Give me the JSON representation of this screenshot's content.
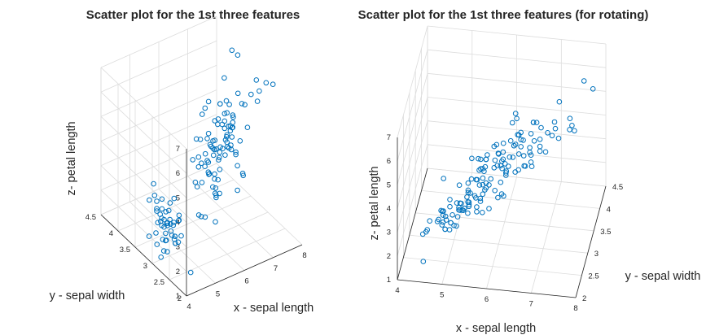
{
  "chart_data": [
    {
      "type": "scatter",
      "title": "Scatter plot for the 1st three features",
      "xlabel": "x - sepal length",
      "ylabel": "y - sepal width",
      "zlabel": "z- petal length",
      "xlim": [
        4,
        8
      ],
      "ylim": [
        2,
        4.5
      ],
      "zlim": [
        1,
        7
      ],
      "xticks": [
        "4",
        "5",
        "6",
        "7",
        "8"
      ],
      "yticks": [
        "2",
        "2.5",
        "3",
        "3.5",
        "4",
        "4.5"
      ],
      "zticks": [
        "1",
        "2",
        "3",
        "4",
        "5",
        "6",
        "7"
      ],
      "grid": true,
      "marker_color": "#0072bd",
      "marker": "circle-open"
    },
    {
      "type": "scatter",
      "title": "Scatter plot for the 1st three features (for rotating)",
      "xlabel": "x - sepal length",
      "ylabel": "y - sepal width",
      "zlabel": "z- petal length",
      "xlim": [
        4,
        8
      ],
      "ylim": [
        2,
        4.5
      ],
      "zlim": [
        1,
        7
      ],
      "xticks": [
        "4",
        "5",
        "6",
        "7",
        "8"
      ],
      "yticks": [
        "2",
        "2.5",
        "3",
        "3.5",
        "4",
        "4.5"
      ],
      "zticks": [
        "1",
        "2",
        "3",
        "4",
        "5",
        "6",
        "7"
      ],
      "grid": true,
      "marker_color": "#0072bd",
      "marker": "circle-open"
    }
  ],
  "points": [
    [
      5.1,
      3.5,
      1.4
    ],
    [
      4.9,
      3.0,
      1.4
    ],
    [
      4.7,
      3.2,
      1.3
    ],
    [
      4.6,
      3.1,
      1.5
    ],
    [
      5.0,
      3.6,
      1.4
    ],
    [
      5.4,
      3.9,
      1.7
    ],
    [
      4.6,
      3.4,
      1.4
    ],
    [
      5.0,
      3.4,
      1.5
    ],
    [
      4.4,
      2.9,
      1.4
    ],
    [
      4.9,
      3.1,
      1.5
    ],
    [
      5.4,
      3.7,
      1.5
    ],
    [
      4.8,
      3.4,
      1.6
    ],
    [
      4.8,
      3.0,
      1.4
    ],
    [
      4.3,
      3.0,
      1.1
    ],
    [
      5.8,
      4.0,
      1.2
    ],
    [
      5.7,
      4.4,
      1.5
    ],
    [
      5.4,
      3.9,
      1.3
    ],
    [
      5.1,
      3.5,
      1.4
    ],
    [
      5.7,
      3.8,
      1.7
    ],
    [
      5.1,
      3.8,
      1.5
    ],
    [
      5.4,
      3.4,
      1.7
    ],
    [
      5.1,
      3.7,
      1.5
    ],
    [
      4.6,
      3.6,
      1.0
    ],
    [
      5.1,
      3.3,
      1.7
    ],
    [
      4.8,
      3.4,
      1.9
    ],
    [
      5.0,
      3.0,
      1.6
    ],
    [
      5.0,
      3.4,
      1.6
    ],
    [
      5.2,
      3.5,
      1.5
    ],
    [
      5.2,
      3.4,
      1.4
    ],
    [
      4.7,
      3.2,
      1.6
    ],
    [
      4.8,
      3.1,
      1.6
    ],
    [
      5.4,
      3.4,
      1.5
    ],
    [
      5.2,
      4.1,
      1.5
    ],
    [
      5.5,
      4.2,
      1.4
    ],
    [
      4.9,
      3.1,
      1.5
    ],
    [
      5.0,
      3.2,
      1.2
    ],
    [
      5.5,
      3.5,
      1.3
    ],
    [
      4.9,
      3.6,
      1.4
    ],
    [
      4.4,
      3.0,
      1.3
    ],
    [
      5.1,
      3.4,
      1.5
    ],
    [
      5.0,
      3.5,
      1.3
    ],
    [
      4.5,
      2.3,
      1.3
    ],
    [
      4.4,
      3.2,
      1.3
    ],
    [
      5.0,
      3.5,
      1.6
    ],
    [
      5.1,
      3.8,
      1.9
    ],
    [
      4.8,
      3.0,
      1.4
    ],
    [
      5.1,
      3.8,
      1.6
    ],
    [
      4.6,
      3.2,
      1.4
    ],
    [
      5.3,
      3.7,
      1.5
    ],
    [
      5.0,
      3.3,
      1.4
    ],
    [
      7.0,
      3.2,
      4.7
    ],
    [
      6.4,
      3.2,
      4.5
    ],
    [
      6.9,
      3.1,
      4.9
    ],
    [
      5.5,
      2.3,
      4.0
    ],
    [
      6.5,
      2.8,
      4.6
    ],
    [
      5.7,
      2.8,
      4.5
    ],
    [
      6.3,
      3.3,
      4.7
    ],
    [
      4.9,
      2.4,
      3.3
    ],
    [
      6.6,
      2.9,
      4.6
    ],
    [
      5.2,
      2.7,
      3.9
    ],
    [
      5.0,
      2.0,
      3.5
    ],
    [
      5.9,
      3.0,
      4.2
    ],
    [
      6.0,
      2.2,
      4.0
    ],
    [
      6.1,
      2.9,
      4.7
    ],
    [
      5.6,
      2.9,
      3.6
    ],
    [
      6.7,
      3.1,
      4.4
    ],
    [
      5.6,
      3.0,
      4.5
    ],
    [
      5.8,
      2.7,
      4.1
    ],
    [
      6.2,
      2.2,
      4.5
    ],
    [
      5.6,
      2.5,
      3.9
    ],
    [
      5.9,
      3.2,
      4.8
    ],
    [
      6.1,
      2.8,
      4.0
    ],
    [
      6.3,
      2.5,
      4.9
    ],
    [
      6.1,
      2.8,
      4.7
    ],
    [
      6.4,
      2.9,
      4.3
    ],
    [
      6.6,
      3.0,
      4.4
    ],
    [
      6.8,
      2.8,
      4.8
    ],
    [
      6.7,
      3.0,
      5.0
    ],
    [
      6.0,
      2.9,
      4.5
    ],
    [
      5.7,
      2.6,
      3.5
    ],
    [
      5.5,
      2.4,
      3.8
    ],
    [
      5.5,
      2.4,
      3.7
    ],
    [
      5.8,
      2.7,
      3.9
    ],
    [
      6.0,
      2.7,
      5.1
    ],
    [
      5.4,
      3.0,
      4.5
    ],
    [
      6.0,
      3.4,
      4.5
    ],
    [
      6.7,
      3.1,
      4.7
    ],
    [
      6.3,
      2.3,
      4.4
    ],
    [
      5.6,
      3.0,
      4.1
    ],
    [
      5.5,
      2.5,
      4.0
    ],
    [
      5.5,
      2.6,
      4.4
    ],
    [
      6.1,
      3.0,
      4.6
    ],
    [
      5.8,
      2.6,
      4.0
    ],
    [
      5.0,
      2.3,
      3.3
    ],
    [
      5.6,
      2.7,
      4.2
    ],
    [
      5.7,
      3.0,
      4.2
    ],
    [
      5.7,
      2.9,
      4.2
    ],
    [
      6.2,
      2.9,
      4.3
    ],
    [
      5.1,
      2.5,
      3.0
    ],
    [
      5.7,
      2.8,
      4.1
    ],
    [
      6.3,
      3.3,
      6.0
    ],
    [
      5.8,
      2.7,
      5.1
    ],
    [
      7.1,
      3.0,
      5.9
    ],
    [
      6.3,
      2.9,
      5.6
    ],
    [
      6.5,
      3.0,
      5.8
    ],
    [
      7.6,
      3.0,
      6.6
    ],
    [
      4.9,
      2.5,
      4.5
    ],
    [
      7.3,
      2.9,
      6.3
    ],
    [
      6.7,
      2.5,
      5.8
    ],
    [
      7.2,
      3.6,
      6.1
    ],
    [
      6.5,
      3.2,
      5.1
    ],
    [
      6.4,
      2.7,
      5.3
    ],
    [
      6.8,
      3.0,
      5.5
    ],
    [
      5.7,
      2.5,
      5.0
    ],
    [
      5.8,
      2.8,
      5.1
    ],
    [
      6.4,
      3.2,
      5.3
    ],
    [
      6.5,
      3.0,
      5.5
    ],
    [
      7.7,
      3.8,
      6.7
    ],
    [
      7.7,
      2.6,
      6.9
    ],
    [
      6.0,
      2.2,
      5.0
    ],
    [
      6.9,
      3.2,
      5.7
    ],
    [
      5.6,
      2.8,
      4.9
    ],
    [
      7.7,
      2.8,
      6.7
    ],
    [
      6.3,
      2.7,
      4.9
    ],
    [
      6.7,
      3.3,
      5.7
    ],
    [
      7.2,
      3.2,
      6.0
    ],
    [
      6.2,
      2.8,
      4.8
    ],
    [
      6.1,
      3.0,
      4.9
    ],
    [
      6.4,
      2.8,
      5.6
    ],
    [
      7.2,
      3.0,
      5.8
    ],
    [
      7.4,
      2.8,
      6.1
    ],
    [
      7.9,
      3.8,
      6.4
    ],
    [
      6.4,
      2.8,
      5.6
    ],
    [
      6.3,
      2.8,
      5.1
    ],
    [
      6.1,
      2.6,
      5.6
    ],
    [
      7.7,
      3.0,
      6.1
    ],
    [
      6.3,
      3.4,
      5.6
    ],
    [
      6.4,
      3.1,
      5.5
    ],
    [
      6.0,
      3.0,
      4.8
    ],
    [
      6.9,
      3.1,
      5.4
    ],
    [
      6.7,
      3.1,
      5.6
    ],
    [
      6.9,
      3.1,
      5.1
    ],
    [
      5.8,
      2.7,
      5.1
    ],
    [
      6.8,
      3.2,
      5.9
    ],
    [
      6.7,
      3.3,
      5.7
    ],
    [
      6.7,
      3.0,
      5.2
    ],
    [
      6.3,
      2.5,
      5.0
    ],
    [
      6.5,
      3.0,
      5.2
    ],
    [
      6.2,
      3.4,
      5.4
    ],
    [
      5.9,
      3.0,
      5.1
    ]
  ]
}
